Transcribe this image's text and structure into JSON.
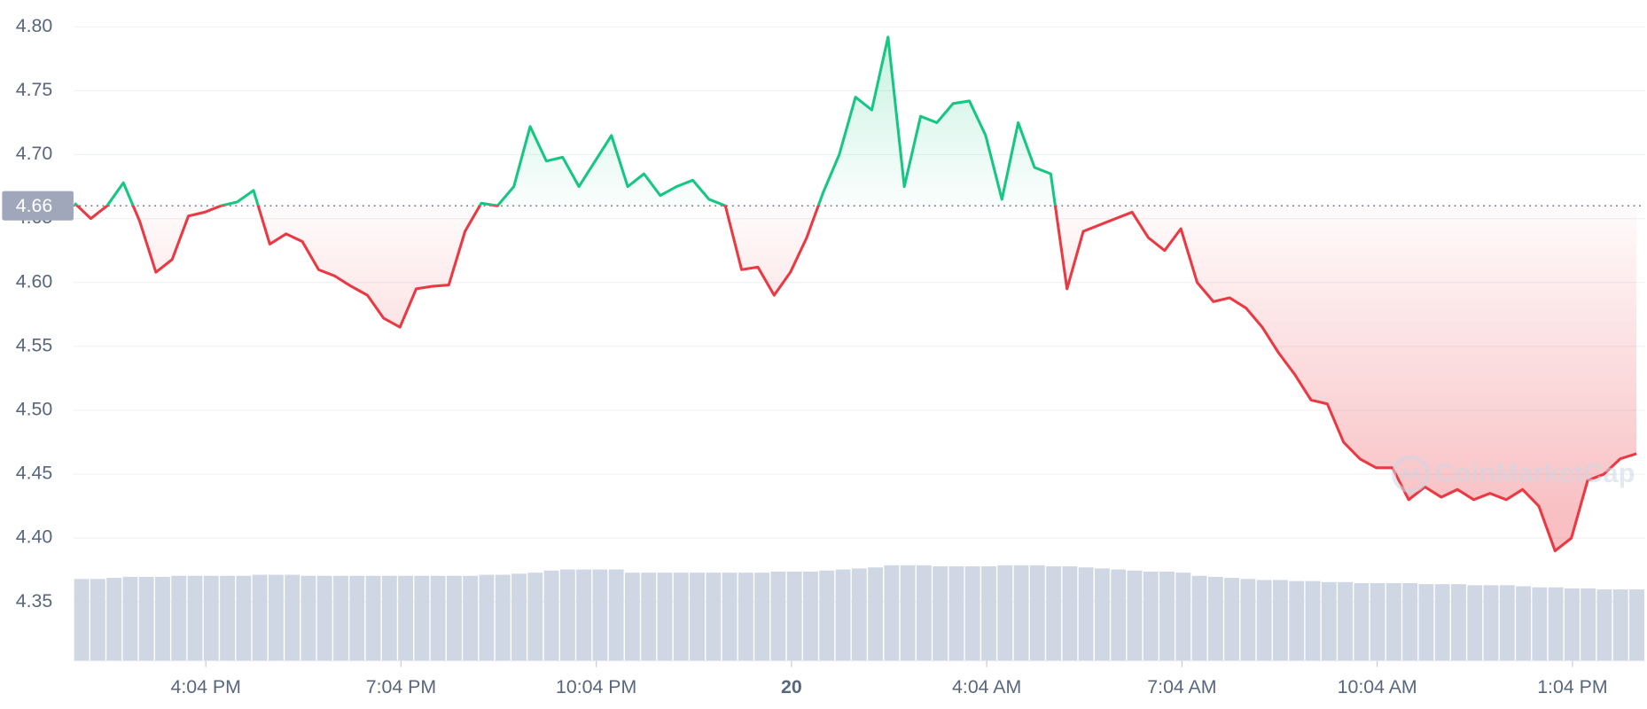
{
  "chart_data": {
    "type": "line",
    "x": [
      14.05,
      14.3,
      14.55,
      14.8,
      15.05,
      15.3,
      15.55,
      15.8,
      16.05,
      16.3,
      16.55,
      16.8,
      17.05,
      17.3,
      17.55,
      17.8,
      18.05,
      18.3,
      18.55,
      18.8,
      19.05,
      19.3,
      19.55,
      19.8,
      20.05,
      20.3,
      20.55,
      20.8,
      21.05,
      21.3,
      21.55,
      21.8,
      22.05,
      22.3,
      22.55,
      22.8,
      23.05,
      23.3,
      23.55,
      23.8,
      24.05,
      24.3,
      24.55,
      24.8,
      25.05,
      25.3,
      25.55,
      25.8,
      26.05,
      26.3,
      26.55,
      26.8,
      27.05,
      27.3,
      27.55,
      27.8,
      28.05,
      28.3,
      28.55,
      28.8,
      29.05,
      29.3,
      29.55,
      29.8,
      30.05,
      30.3,
      30.55,
      30.8,
      31.05,
      31.3,
      31.55,
      31.8,
      32.05,
      32.3,
      32.55,
      32.8,
      33.05,
      33.3,
      33.55,
      33.8,
      34.05,
      34.3,
      34.55,
      34.8,
      35.05,
      35.3,
      35.55,
      35.8,
      36.05,
      36.3,
      36.55,
      36.8,
      37.05,
      37.3,
      37.55,
      37.8,
      38.05
    ],
    "series": [
      {
        "color_up": "#16c784",
        "color_down": "#ea3943",
        "values": [
          4.662,
          4.65,
          4.66,
          4.678,
          4.648,
          4.608,
          4.618,
          4.652,
          4.655,
          4.66,
          4.663,
          4.672,
          4.63,
          4.638,
          4.632,
          4.61,
          4.605,
          4.597,
          4.59,
          4.572,
          4.565,
          4.595,
          4.597,
          4.598,
          4.64,
          4.662,
          4.66,
          4.675,
          4.722,
          4.695,
          4.698,
          4.675,
          4.695,
          4.715,
          4.675,
          4.685,
          4.668,
          4.675,
          4.68,
          4.665,
          4.66,
          4.61,
          4.612,
          4.59,
          4.608,
          4.635,
          4.67,
          4.7,
          4.745,
          4.735,
          4.792,
          4.675,
          4.73,
          4.725,
          4.74,
          4.742,
          4.715,
          4.665,
          4.725,
          4.69,
          4.685,
          4.595,
          4.64,
          4.645,
          4.65,
          4.655,
          4.635,
          4.625,
          4.642,
          4.6,
          4.585,
          4.588,
          4.58,
          4.565,
          4.545,
          4.528,
          4.508,
          4.505,
          4.475,
          4.462,
          4.455,
          4.455,
          4.43,
          4.44,
          4.432,
          4.438,
          4.43,
          4.435,
          4.43,
          4.438,
          4.425,
          4.39,
          4.4,
          4.445,
          4.45,
          4.462,
          4.466
        ]
      }
    ],
    "volume": {
      "color": "#cfd6e4",
      "values": [
        78,
        78,
        79,
        80,
        80,
        80,
        81,
        81,
        81,
        81,
        81,
        82,
        82,
        82,
        81,
        81,
        81,
        81,
        81,
        81,
        81,
        81,
        81,
        81,
        81,
        82,
        82,
        83,
        84,
        86,
        87,
        87,
        87,
        87,
        84,
        84,
        84,
        84,
        84,
        84,
        84,
        84,
        84,
        85,
        85,
        85,
        86,
        87,
        88,
        89,
        91,
        91,
        91,
        90,
        90,
        90,
        90,
        91,
        91,
        91,
        90,
        90,
        89,
        88,
        87,
        86,
        85,
        85,
        84,
        81,
        80,
        79,
        78,
        77,
        77,
        76,
        76,
        75,
        75,
        74,
        74,
        74,
        74,
        73,
        73,
        73,
        72,
        72,
        72,
        71,
        70,
        70,
        69,
        69,
        68,
        68,
        68
      ]
    },
    "y2lim": [
      0,
      100
    ],
    "ylim": [
      4.304,
      4.821
    ],
    "yticks": [
      4.35,
      {
        "value": 4.4,
        "label": "4.40"
      },
      4.45,
      {
        "value": 4.5,
        "label": "4.50"
      },
      4.55,
      {
        "value": 4.6,
        "label": "4.60"
      },
      4.65,
      {
        "value": 4.7,
        "label": "4.70"
      },
      4.75,
      {
        "value": 4.8,
        "label": "4.80"
      }
    ],
    "xlim": [
      14.034,
      38.18
    ],
    "xticks": [
      {
        "value": 16.0667,
        "label": "4:04 PM"
      },
      {
        "value": 19.0667,
        "label": "7:04 PM"
      },
      {
        "value": 22.0667,
        "label": "10:04 PM"
      },
      {
        "value": 25.0667,
        "label": "20"
      },
      {
        "value": 28.0667,
        "label": "4:04 AM"
      },
      {
        "value": 31.0667,
        "label": "7:04 AM"
      },
      {
        "value": 34.0667,
        "label": "10:04 AM"
      },
      {
        "value": 37.0667,
        "label": "1:04 PM"
      }
    ],
    "baseline": 4.66,
    "grid": true,
    "watermark": "CoinMarketCap"
  }
}
